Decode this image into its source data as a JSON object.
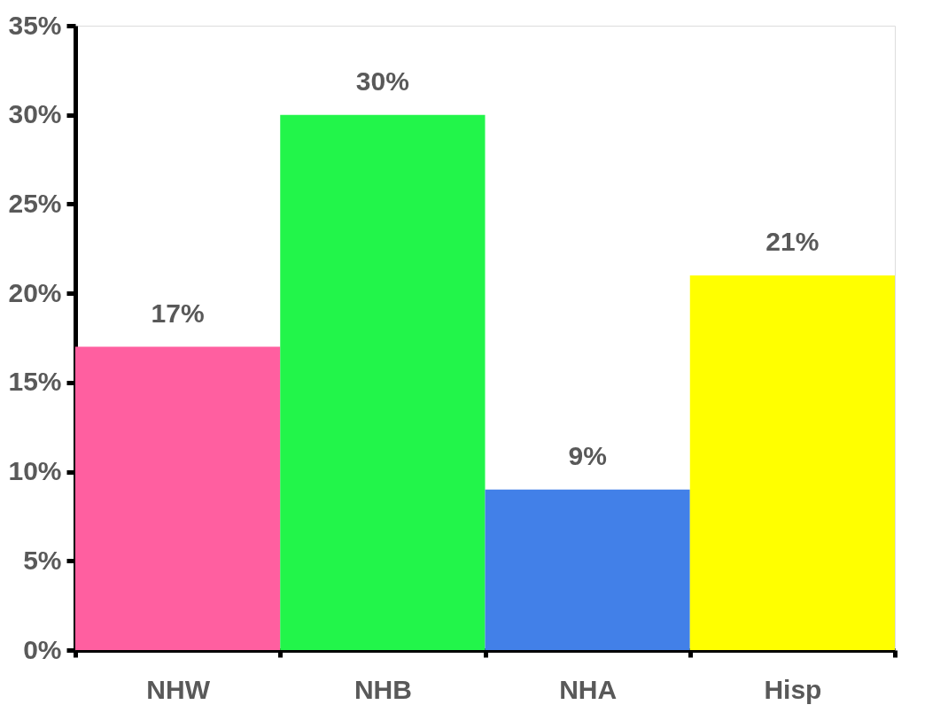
{
  "chart_data": {
    "type": "bar",
    "categories": [
      "NHW",
      "NHB",
      "NHA",
      "Hisp"
    ],
    "values": [
      17,
      30,
      9,
      21
    ],
    "colors": [
      "#ff5fa0",
      "#22f54a",
      "#4280e8",
      "#ffff00"
    ],
    "value_labels": [
      "17%",
      "30%",
      "9%",
      "21%"
    ],
    "ylim": [
      0,
      35
    ],
    "yticks": [
      {
        "value": 0,
        "label": "0%"
      },
      {
        "value": 5,
        "label": "5%"
      },
      {
        "value": 10,
        "label": "10%"
      },
      {
        "value": 15,
        "label": "15%"
      },
      {
        "value": 20,
        "label": "20%"
      },
      {
        "value": 25,
        "label": "25%"
      },
      {
        "value": 30,
        "label": "30%"
      },
      {
        "value": 35,
        "label": "35%"
      }
    ],
    "grid": false,
    "legend": false
  }
}
